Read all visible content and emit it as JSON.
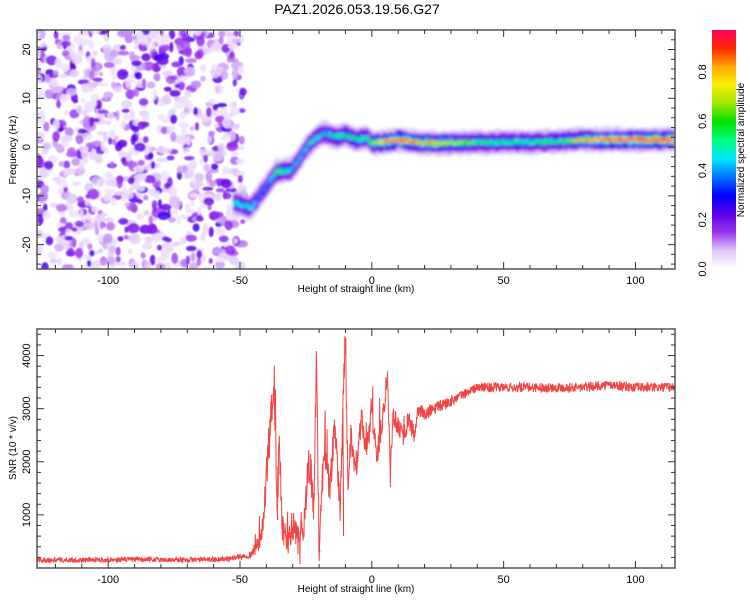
{
  "title": "PAZ1.2026.053.19.56.G27",
  "chart_data": [
    {
      "type": "heatmap",
      "title": "PAZ1.2026.053.19.56.G27",
      "xlabel": "Height of straight line (km)",
      "ylabel": "Frequency (Hz)",
      "xlim": [
        -127,
        115
      ],
      "ylim": [
        -25,
        24
      ],
      "xticks": [
        -100,
        -50,
        0,
        50,
        100
      ],
      "xtick_labels": [
        "-100",
        "-50",
        "0",
        "50",
        "100"
      ],
      "yticks": [
        -20,
        -10,
        0,
        10,
        20
      ],
      "ytick_labels": [
        "-20",
        "-10",
        "0",
        "10",
        "20"
      ],
      "noise_region_x": [
        -127,
        -50
      ],
      "ridge": {
        "x": [
          -52,
          -48,
          -46,
          -44,
          -40,
          -36,
          -34,
          -30,
          -26,
          -22,
          -18,
          -14,
          -10,
          -6,
          -2,
          0,
          5,
          10,
          15,
          20,
          25,
          30,
          40,
          50,
          60,
          70,
          80,
          90,
          100,
          115
        ],
        "y": [
          -11.5,
          -12,
          -12.5,
          -11,
          -8,
          -5,
          -5,
          -4.5,
          -1,
          1.5,
          3,
          2,
          2.5,
          1.5,
          2,
          0.8,
          1,
          1.5,
          1.2,
          0.8,
          0.8,
          0.8,
          1,
          1,
          1,
          1.2,
          1.5,
          1.5,
          1.5,
          1.5
        ],
        "amplitude": [
          0.45,
          0.4,
          0.45,
          0.3,
          0.3,
          0.5,
          0.5,
          0.35,
          0.35,
          0.4,
          0.35,
          0.45,
          0.5,
          0.45,
          0.5,
          0.6,
          0.75,
          0.85,
          0.8,
          0.75,
          0.7,
          0.65,
          0.5,
          0.45,
          0.45,
          0.5,
          0.7,
          0.85,
          0.9,
          0.9
        ]
      },
      "colorbar": {
        "label": "Normalized spectral amplitude",
        "range": [
          0.0,
          0.97
        ],
        "ticks": [
          0.0,
          0.2,
          0.4,
          0.6,
          0.8
        ],
        "tick_labels": [
          "0.0",
          "0.2",
          "0.4",
          "0.6",
          "0.8"
        ],
        "colormap": [
          "#ffffff",
          "#e0c8f8",
          "#9933ee",
          "#5a00e8",
          "#0000ff",
          "#0070ff",
          "#00e8ff",
          "#00ff80",
          "#00e000",
          "#9ee800",
          "#f8f000",
          "#ffa800",
          "#ff2800",
          "#ff0060"
        ]
      }
    },
    {
      "type": "line",
      "xlabel": "Height of straight line (km)",
      "ylabel": "SNR (10 * v/v)",
      "xlim": [
        -127,
        115
      ],
      "ylim": [
        0,
        4500
      ],
      "xticks": [
        -100,
        -50,
        0,
        50,
        100
      ],
      "xtick_labels": [
        "-100",
        "-50",
        "0",
        "50",
        "100"
      ],
      "yticks": [
        1000,
        2000,
        3000,
        4000
      ],
      "ytick_labels": [
        "1000",
        "2000",
        "3000",
        "4000"
      ],
      "series": [
        {
          "name": "SNR",
          "color": "#f03030",
          "x": [
            -127,
            -110,
            -90,
            -70,
            -55,
            -46,
            -42,
            -40,
            -38,
            -37,
            -36,
            -35,
            -34,
            -32,
            -30,
            -28,
            -26,
            -24,
            -22,
            -21,
            -20,
            -19,
            -18,
            -16,
            -14,
            -12,
            -11,
            -10,
            -9,
            -8,
            -6,
            -4,
            -2,
            0,
            2,
            4,
            6,
            7,
            8,
            10,
            12,
            14,
            16,
            18,
            20,
            24,
            28,
            32,
            36,
            40,
            45,
            50,
            60,
            70,
            80,
            90,
            100,
            115
          ],
          "y": [
            150,
            150,
            160,
            150,
            170,
            250,
            500,
            1700,
            2900,
            3600,
            1200,
            2300,
            700,
            500,
            800,
            500,
            700,
            1900,
            1200,
            3900,
            400,
            1500,
            2300,
            1400,
            2700,
            1000,
            3000,
            4450,
            1200,
            2500,
            1800,
            2800,
            2200,
            2900,
            2100,
            2800,
            3700,
            1700,
            2900,
            2700,
            2500,
            2800,
            2500,
            3000,
            2900,
            3000,
            3100,
            3200,
            3300,
            3400,
            3400,
            3400,
            3400,
            3400,
            3400,
            3450,
            3400,
            3400
          ],
          "noise_amplitude": [
            80,
            80,
            80,
            80,
            80,
            100,
            300,
            800,
            800,
            800,
            700,
            700,
            500,
            500,
            500,
            500,
            500,
            600,
            600,
            600,
            600,
            600,
            600,
            500,
            500,
            500,
            500,
            500,
            500,
            500,
            400,
            400,
            400,
            400,
            400,
            400,
            400,
            400,
            350,
            350,
            350,
            300,
            300,
            250,
            250,
            200,
            200,
            150,
            150,
            150,
            150,
            150,
            150,
            150,
            150,
            150,
            150,
            150
          ]
        }
      ]
    }
  ]
}
